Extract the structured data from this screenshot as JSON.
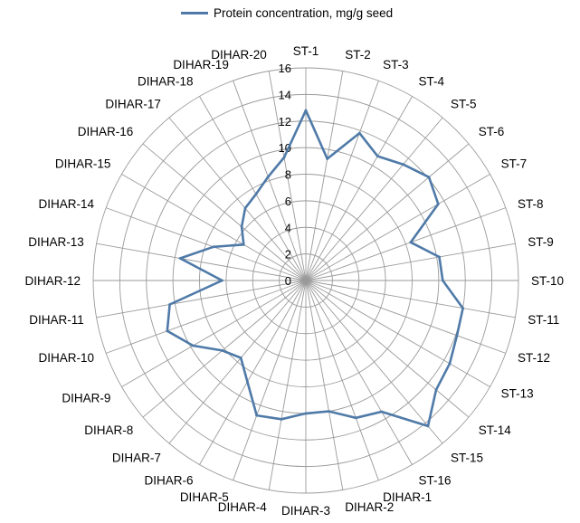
{
  "chart_data": {
    "type": "radar",
    "legend": {
      "position": "top",
      "label": "Protein concentration, mg/g seed"
    },
    "categories": [
      "ST-1",
      "ST-2",
      "ST-3",
      "ST-4",
      "ST-5",
      "ST-6",
      "ST-7",
      "ST-8",
      "ST-9",
      "ST-10",
      "ST-11",
      "ST-12",
      "ST-13",
      "ST-14",
      "ST-15",
      "ST-16",
      "DIHAR-1",
      "DIHAR-2",
      "DIHAR-3",
      "DIHAR-4",
      "DIHAR-5",
      "DIHAR-6",
      "DIHAR-7",
      "DIHAR-8",
      "DIHAR-9",
      "DIHAR-10",
      "DIHAR-11",
      "DIHAR-12",
      "DIHAR-13",
      "DIHAR-14",
      "DIHAR-15",
      "DIHAR-16",
      "DIHAR-17",
      "DIHAR-18",
      "DIHAR-19",
      "DIHAR-20"
    ],
    "series": [
      {
        "name": "Protein concentration, mg/g seed",
        "color": "#4f7aa8",
        "values": [
          12.8,
          9.3,
          11.8,
          10.8,
          11.4,
          12.1,
          11.5,
          8.4,
          10.2,
          10.3,
          12.0,
          12.1,
          12.5,
          12.8,
          14.3,
          11.4,
          11.0,
          10.0,
          10.0,
          10.6,
          10.8,
          8.8,
          7.6,
          8.2,
          9.8,
          11.1,
          10.4,
          6.3,
          9.6,
          7.4,
          5.4,
          6.3,
          7.1,
          7.5,
          8.3,
          9.4
        ]
      }
    ],
    "radial_axis": {
      "min": 0,
      "max": 16,
      "ticks": [
        0,
        2,
        4,
        6,
        8,
        10,
        12,
        14,
        16
      ]
    },
    "grid": true
  }
}
